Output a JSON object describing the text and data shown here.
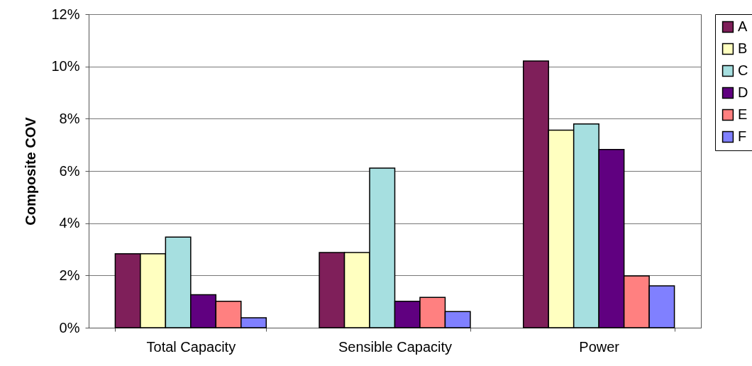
{
  "chart_data": {
    "type": "bar",
    "ylabel": "Composite COV",
    "categories": [
      "Total Capacity",
      "Sensible Capacity",
      "Power"
    ],
    "series": [
      {
        "name": "A",
        "color": "#7f1f5a",
        "values": [
          2.83,
          2.88,
          10.21
        ]
      },
      {
        "name": "B",
        "color": "#ffffc0",
        "values": [
          2.83,
          2.88,
          7.56
        ]
      },
      {
        "name": "C",
        "color": "#a6dfe0",
        "values": [
          3.47,
          6.11,
          7.8
        ]
      },
      {
        "name": "D",
        "color": "#600080",
        "values": [
          1.26,
          1.01,
          6.82
        ]
      },
      {
        "name": "E",
        "color": "#ff8080",
        "values": [
          1.01,
          1.16,
          1.98
        ]
      },
      {
        "name": "F",
        "color": "#8080ff",
        "values": [
          0.38,
          0.62,
          1.6
        ]
      }
    ],
    "ylim": [
      0,
      12
    ],
    "yticks": [
      {
        "value": 0,
        "label": "0%"
      },
      {
        "value": 2,
        "label": "2%"
      },
      {
        "value": 4,
        "label": "4%"
      },
      {
        "value": 6,
        "label": "6%"
      },
      {
        "value": 8,
        "label": "8%"
      },
      {
        "value": 10,
        "label": "10%"
      },
      {
        "value": 12,
        "label": "12%"
      }
    ],
    "grid": "y",
    "legend": "right"
  }
}
